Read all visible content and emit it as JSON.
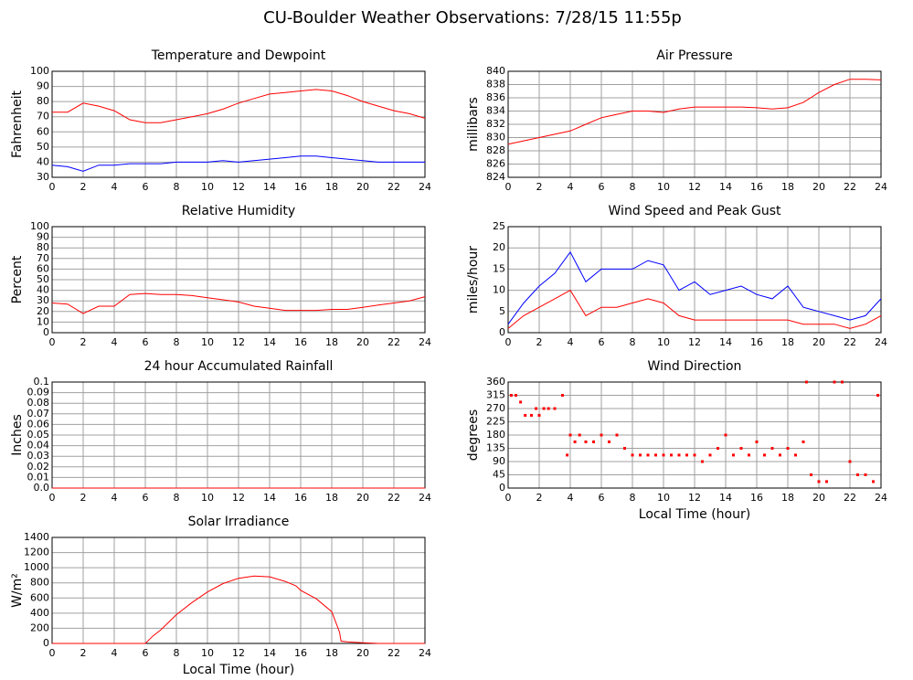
{
  "title": "CU-Boulder Weather Observations: 7/28/15 11:55p",
  "chart_data": [
    {
      "type": "line",
      "title": "Temperature and Dewpoint",
      "ylabel": "Fahrenheit",
      "xlim": [
        0,
        24
      ],
      "xticks": [
        0,
        2,
        4,
        6,
        8,
        10,
        12,
        14,
        16,
        18,
        20,
        22,
        24
      ],
      "ylim": [
        30,
        100
      ],
      "yticks": [
        30,
        40,
        50,
        60,
        70,
        80,
        90,
        100
      ],
      "grid": true,
      "x": [
        0,
        1,
        2,
        3,
        4,
        5,
        6,
        7,
        8,
        9,
        10,
        11,
        12,
        13,
        14,
        15,
        16,
        17,
        18,
        19,
        20,
        21,
        22,
        23,
        24
      ],
      "series": [
        {
          "color": "#ff0000",
          "values": [
            73,
            73,
            79,
            77,
            74,
            68,
            66,
            66,
            68,
            70,
            72,
            75,
            79,
            82,
            85,
            86,
            87,
            88,
            87,
            84,
            80,
            77,
            74,
            72,
            69
          ]
        },
        {
          "color": "#0000ff",
          "values": [
            38,
            37,
            34,
            38,
            38,
            39,
            39,
            39,
            40,
            40,
            40,
            41,
            40,
            41,
            42,
            43,
            44,
            44,
            43,
            42,
            41,
            40,
            40,
            40,
            40
          ]
        }
      ]
    },
    {
      "type": "line",
      "title": "Air Pressure",
      "ylabel": "millibars",
      "xlim": [
        0,
        24
      ],
      "xticks": [
        0,
        2,
        4,
        6,
        8,
        10,
        12,
        14,
        16,
        18,
        20,
        22,
        24
      ],
      "ylim": [
        824,
        840
      ],
      "yticks": [
        824,
        826,
        828,
        830,
        832,
        834,
        836,
        838,
        840
      ],
      "grid": true,
      "x": [
        0,
        1,
        2,
        3,
        4,
        5,
        6,
        7,
        8,
        9,
        10,
        11,
        12,
        13,
        14,
        15,
        16,
        17,
        18,
        19,
        20,
        21,
        22,
        23,
        24
      ],
      "series": [
        {
          "color": "#ff0000",
          "values": [
            829,
            829.5,
            830,
            830.5,
            831,
            832,
            833,
            833.5,
            834,
            834,
            833.8,
            834.3,
            834.6,
            834.6,
            834.6,
            834.6,
            834.5,
            834.3,
            834.5,
            835.3,
            836.8,
            838,
            838.8,
            838.8,
            838.7
          ]
        }
      ]
    },
    {
      "type": "line",
      "title": "Relative Humidity",
      "ylabel": "Percent",
      "xlim": [
        0,
        24
      ],
      "xticks": [
        0,
        2,
        4,
        6,
        8,
        10,
        12,
        14,
        16,
        18,
        20,
        22,
        24
      ],
      "ylim": [
        0,
        100
      ],
      "yticks": [
        0,
        10,
        20,
        30,
        40,
        50,
        60,
        70,
        80,
        90,
        100
      ],
      "grid": true,
      "x": [
        0,
        1,
        2,
        3,
        4,
        5,
        6,
        7,
        8,
        9,
        10,
        11,
        12,
        13,
        14,
        15,
        16,
        17,
        18,
        19,
        20,
        21,
        22,
        23,
        24
      ],
      "series": [
        {
          "color": "#ff0000",
          "values": [
            28,
            27,
            18,
            25,
            25,
            36,
            37,
            36,
            36,
            35,
            33,
            31,
            29,
            25,
            23,
            21,
            21,
            21,
            22,
            22,
            24,
            26,
            28,
            30,
            34
          ]
        }
      ]
    },
    {
      "type": "line",
      "title": "Wind Speed and Peak Gust",
      "ylabel": "miles/hour",
      "xlim": [
        0,
        24
      ],
      "xticks": [
        0,
        2,
        4,
        6,
        8,
        10,
        12,
        14,
        16,
        18,
        20,
        22,
        24
      ],
      "ylim": [
        0,
        25
      ],
      "yticks": [
        0,
        5,
        10,
        15,
        20,
        25
      ],
      "grid": true,
      "x": [
        0,
        1,
        2,
        3,
        4,
        5,
        6,
        7,
        8,
        9,
        10,
        11,
        12,
        13,
        14,
        15,
        16,
        17,
        18,
        19,
        20,
        21,
        22,
        23,
        24
      ],
      "series": [
        {
          "color": "#0000ff",
          "values": [
            2,
            7,
            11,
            14,
            19,
            12,
            15,
            15,
            15,
            17,
            16,
            10,
            12,
            9,
            10,
            11,
            9,
            8,
            11,
            6,
            5,
            4,
            3,
            4,
            8
          ]
        },
        {
          "color": "#ff0000",
          "values": [
            1,
            4,
            6,
            8,
            10,
            4,
            6,
            6,
            7,
            8,
            7,
            4,
            3,
            3,
            3,
            3,
            3,
            3,
            3,
            2,
            2,
            2,
            1,
            2,
            4
          ]
        }
      ]
    },
    {
      "type": "line",
      "title": "24 hour Accumulated Rainfall",
      "ylabel": "Inches",
      "xlim": [
        0,
        24
      ],
      "xticks": [
        0,
        2,
        4,
        6,
        8,
        10,
        12,
        14,
        16,
        18,
        20,
        22,
        24
      ],
      "ylim": [
        0,
        0.1
      ],
      "yticks": [
        {
          "value": 0,
          "label": "0.0"
        },
        0.01,
        0.02,
        0.03,
        0.04,
        0.05,
        0.06,
        0.07,
        0.08,
        0.09,
        0.1
      ],
      "grid": true,
      "x": [
        0,
        24
      ],
      "series": [
        {
          "color": "#ff0000",
          "values": [
            0,
            0
          ]
        }
      ]
    },
    {
      "type": "scatter",
      "title": "Wind Direction",
      "ylabel": "degrees",
      "xlabel": "Local Time (hour)",
      "xlim": [
        0,
        24
      ],
      "xticks": [
        0,
        2,
        4,
        6,
        8,
        10,
        12,
        14,
        16,
        18,
        20,
        22,
        24
      ],
      "ylim": [
        0,
        360
      ],
      "yticks": [
        0,
        45,
        90,
        135,
        180,
        225,
        270,
        315,
        360
      ],
      "grid": true,
      "x": [
        0.2,
        0.5,
        0.8,
        1.1,
        1.5,
        1.8,
        2,
        2.3,
        2.6,
        3,
        3.5,
        3.8,
        4,
        4.3,
        4.6,
        5,
        5.5,
        6,
        6.5,
        7,
        7.5,
        8,
        8.5,
        9,
        9.5,
        10,
        10.5,
        11,
        11.5,
        12,
        12.5,
        13,
        13.5,
        14,
        14.5,
        15,
        15.5,
        16,
        16.5,
        17,
        17.5,
        18,
        18.5,
        19,
        19.2,
        19.5,
        20,
        20.5,
        21,
        21.5,
        22,
        22.5,
        23,
        23.5,
        23.8
      ],
      "series": [
        {
          "color": "#ff0000",
          "values": [
            315,
            315,
            292,
            247,
            247,
            270,
            247,
            270,
            270,
            270,
            315,
            112,
            180,
            157,
            180,
            157,
            157,
            180,
            157,
            180,
            135,
            112,
            112,
            112,
            112,
            112,
            112,
            112,
            112,
            112,
            90,
            112,
            135,
            180,
            112,
            135,
            112,
            157,
            112,
            135,
            112,
            135,
            112,
            157,
            360,
            45,
            22,
            22,
            360,
            360,
            90,
            45,
            45,
            22,
            315
          ]
        }
      ]
    },
    {
      "type": "line",
      "title": "Solar Irradiance",
      "ylabel": "W/m²",
      "xlabel": "Local Time (hour)",
      "xlim": [
        0,
        24
      ],
      "xticks": [
        0,
        2,
        4,
        6,
        8,
        10,
        12,
        14,
        16,
        18,
        20,
        22,
        24
      ],
      "ylim": [
        0,
        1400
      ],
      "yticks": [
        0,
        200,
        400,
        600,
        800,
        1000,
        1200,
        1400
      ],
      "grid": true,
      "x": [
        0,
        6,
        6.5,
        7,
        8,
        9,
        10,
        11,
        12,
        13,
        14,
        15,
        15.7,
        16,
        17,
        18,
        18.5,
        18.6,
        19,
        20,
        21,
        24
      ],
      "series": [
        {
          "color": "#ff0000",
          "values": [
            0,
            0,
            100,
            180,
            380,
            540,
            680,
            790,
            860,
            890,
            880,
            820,
            760,
            700,
            590,
            420,
            150,
            30,
            20,
            10,
            0,
            0
          ]
        }
      ]
    }
  ]
}
